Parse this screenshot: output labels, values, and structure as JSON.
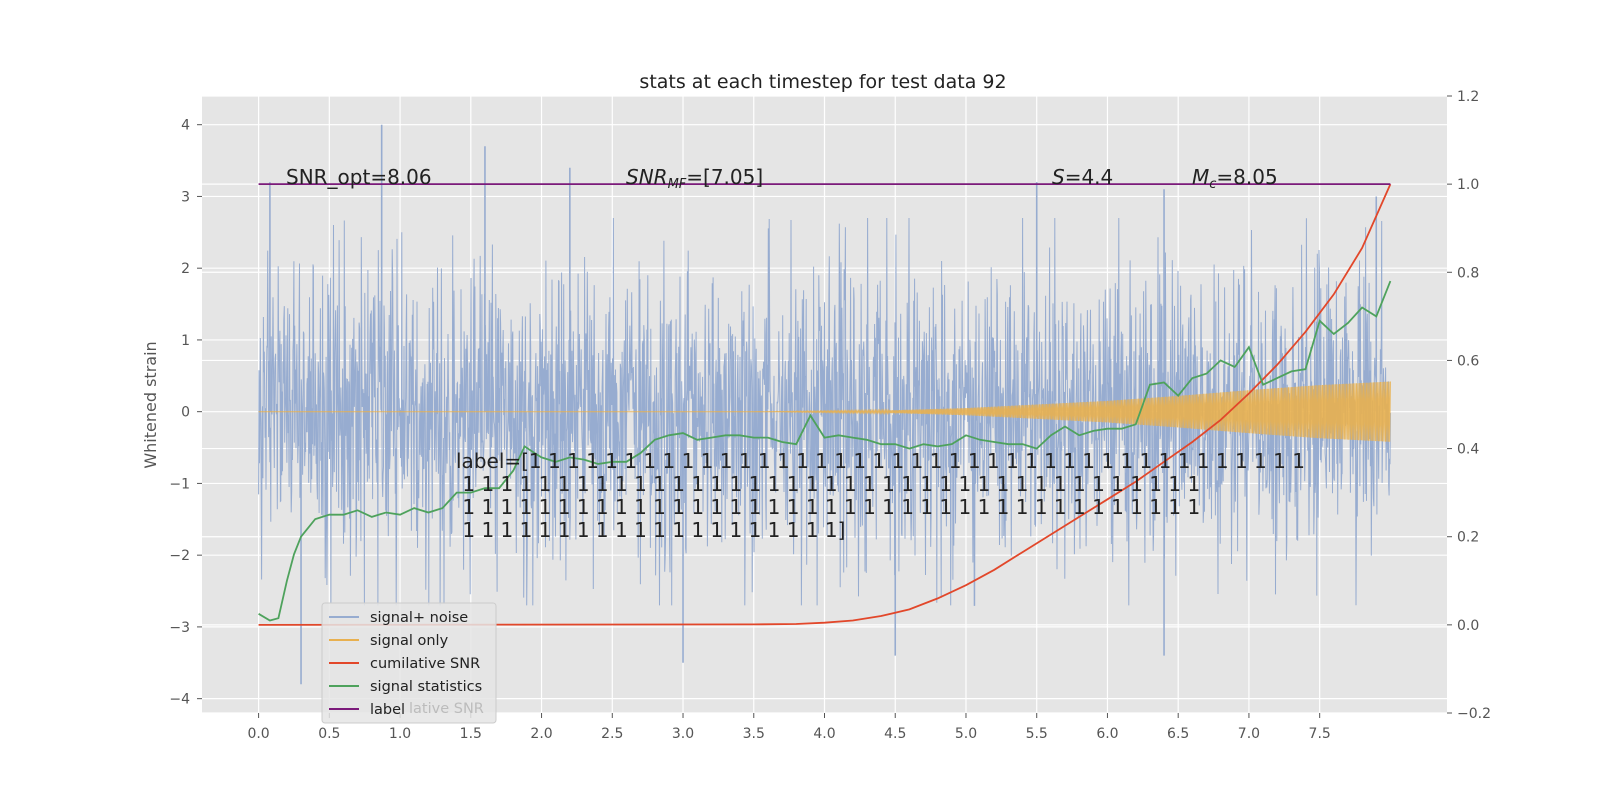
{
  "chart_data": {
    "type": "line",
    "title": "stats at each timestep for test data 92",
    "ylabel": "Whitened strain",
    "xlim": [
      -0.4,
      8.4
    ],
    "ylim": [
      -4.2,
      4.4
    ],
    "y2lim": [
      -0.2,
      1.2
    ],
    "x_ticks": [
      0.0,
      0.5,
      1.0,
      1.5,
      2.0,
      2.5,
      3.0,
      3.5,
      4.0,
      4.5,
      5.0,
      5.5,
      6.0,
      6.5,
      7.0,
      7.5
    ],
    "x_tick_labels": [
      "0.0",
      "0.5",
      "1.0",
      "1.5",
      "2.0",
      "2.5",
      "3.0",
      "3.5",
      "4.0",
      "4.5",
      "5.0",
      "5.5",
      "6.0",
      "6.5",
      "7.0",
      "7.5"
    ],
    "y_ticks": [
      -4,
      -3,
      -2,
      -1,
      0,
      1,
      2,
      3,
      4
    ],
    "y_tick_labels": [
      "−4",
      "−3",
      "−2",
      "−1",
      "0",
      "1",
      "2",
      "3",
      "4"
    ],
    "y2_ticks": [
      -0.2,
      0.0,
      0.2,
      0.4,
      0.6,
      0.8,
      1.0,
      1.2
    ],
    "y2_tick_labels": [
      "−0.2",
      "0.0",
      "0.2",
      "0.4",
      "0.6",
      "0.8",
      "1.0",
      "1.2"
    ],
    "grid": true,
    "legend_position": "lower-left",
    "annotations": {
      "snr_opt": "SNR_opt=8.06",
      "snr_mf": "SNR",
      "snr_mf_sub": "MF",
      "snr_mf_val": "=[7.05]",
      "s_sym": "S",
      "s_val": "=4.4",
      "mc_sym": "M",
      "mc_sub": "c",
      "mc_val": "=8.05",
      "label_lines": [
        "label=[1 1 1 1 1 1 1 1 1 1 1 1 1 1 1 1 1 1 1 1 1 1 1 1 1 1 1 1 1 1 1 1 1 1 1 1 1 1 1 1 1",
        " 1 1 1 1 1 1 1 1 1 1 1 1 1 1 1 1 1 1 1 1 1 1 1 1 1 1 1 1 1 1 1 1 1 1 1 1 1 1 1",
        " 1 1 1 1 1 1 1 1 1 1 1 1 1 1 1 1 1 1 1 1 1 1 1 1 1 1 1 1 1 1 1 1 1 1 1 1 1 1 1",
        " 1 1 1 1 1 1 1 1 1 1 1 1 1 1 1 1 1 1 1 1]"
      ]
    },
    "legend_ghost": "lative SNR",
    "series": [
      {
        "name": "signal+ noise",
        "axis": "left",
        "color": "#97acd0",
        "style": "dense-noise",
        "x_range": [
          0.0,
          8.0
        ],
        "sigma": 1.0,
        "peaks": [
          [
            0.08,
            3.2
          ],
          [
            0.87,
            4.0
          ],
          [
            1.6,
            3.7
          ],
          [
            2.2,
            3.4
          ],
          [
            5.5,
            3.2
          ],
          [
            6.4,
            3.1
          ],
          [
            7.9,
            3.0
          ],
          [
            3.0,
            -3.5
          ],
          [
            0.3,
            -3.8
          ],
          [
            4.5,
            -3.4
          ],
          [
            6.4,
            -3.4
          ]
        ]
      },
      {
        "name": "signal only",
        "axis": "left",
        "color": "#e8b04f",
        "style": "chirp-envelope",
        "x_range": [
          0.0,
          8.0
        ],
        "envelope": [
          [
            0.0,
            0.0
          ],
          [
            3.5,
            0.0
          ],
          [
            4.5,
            0.02
          ],
          [
            5.0,
            0.05
          ],
          [
            5.5,
            0.1
          ],
          [
            6.0,
            0.15
          ],
          [
            6.5,
            0.22
          ],
          [
            7.0,
            0.3
          ],
          [
            7.5,
            0.37
          ],
          [
            8.0,
            0.42
          ]
        ]
      },
      {
        "name": "cumilative SNR",
        "axis": "right",
        "color": "#e2472a",
        "style": "line",
        "x": [
          0.0,
          3.5,
          3.8,
          4.0,
          4.2,
          4.4,
          4.6,
          4.8,
          5.0,
          5.2,
          5.4,
          5.6,
          5.8,
          6.0,
          6.2,
          6.4,
          6.6,
          6.8,
          7.0,
          7.2,
          7.4,
          7.6,
          7.8,
          8.0
        ],
        "y": [
          0.0,
          0.001,
          0.002,
          0.005,
          0.01,
          0.02,
          0.035,
          0.06,
          0.09,
          0.125,
          0.165,
          0.205,
          0.245,
          0.285,
          0.325,
          0.37,
          0.415,
          0.465,
          0.525,
          0.59,
          0.665,
          0.75,
          0.855,
          1.0
        ]
      },
      {
        "name": "signal statistics",
        "axis": "right",
        "color": "#4ea25c",
        "style": "line",
        "x": [
          0.0,
          0.08,
          0.14,
          0.2,
          0.25,
          0.3,
          0.35,
          0.4,
          0.5,
          0.6,
          0.7,
          0.8,
          0.9,
          1.0,
          1.1,
          1.2,
          1.3,
          1.4,
          1.5,
          1.6,
          1.7,
          1.8,
          1.88,
          1.95,
          2.0,
          2.1,
          2.2,
          2.3,
          2.4,
          2.5,
          2.6,
          2.7,
          2.8,
          2.9,
          3.0,
          3.1,
          3.2,
          3.3,
          3.4,
          3.5,
          3.6,
          3.7,
          3.8,
          3.9,
          4.0,
          4.1,
          4.2,
          4.3,
          4.4,
          4.5,
          4.6,
          4.7,
          4.8,
          4.9,
          5.0,
          5.1,
          5.2,
          5.3,
          5.4,
          5.5,
          5.6,
          5.7,
          5.8,
          5.9,
          6.0,
          6.1,
          6.2,
          6.3,
          6.4,
          6.5,
          6.6,
          6.7,
          6.8,
          6.9,
          7.0,
          7.1,
          7.2,
          7.3,
          7.4,
          7.5,
          7.6,
          7.7,
          7.8,
          7.9,
          8.0
        ],
        "y": [
          0.025,
          0.01,
          0.015,
          0.1,
          0.16,
          0.2,
          0.22,
          0.24,
          0.25,
          0.25,
          0.26,
          0.245,
          0.255,
          0.25,
          0.265,
          0.255,
          0.265,
          0.3,
          0.3,
          0.31,
          0.31,
          0.35,
          0.405,
          0.39,
          0.38,
          0.37,
          0.38,
          0.375,
          0.365,
          0.37,
          0.37,
          0.39,
          0.42,
          0.43,
          0.435,
          0.42,
          0.425,
          0.43,
          0.43,
          0.425,
          0.425,
          0.415,
          0.41,
          0.475,
          0.425,
          0.43,
          0.425,
          0.42,
          0.41,
          0.41,
          0.4,
          0.41,
          0.405,
          0.41,
          0.43,
          0.42,
          0.415,
          0.41,
          0.41,
          0.4,
          0.43,
          0.45,
          0.43,
          0.44,
          0.445,
          0.445,
          0.455,
          0.545,
          0.55,
          0.52,
          0.56,
          0.57,
          0.6,
          0.585,
          0.63,
          0.545,
          0.56,
          0.575,
          0.58,
          0.69,
          0.66,
          0.685,
          0.72,
          0.7,
          0.78
        ]
      },
      {
        "name": "label",
        "axis": "right",
        "color": "#7b1a7a",
        "style": "line",
        "x": [
          0.0,
          8.0
        ],
        "y": [
          1.0,
          1.0
        ]
      }
    ]
  }
}
